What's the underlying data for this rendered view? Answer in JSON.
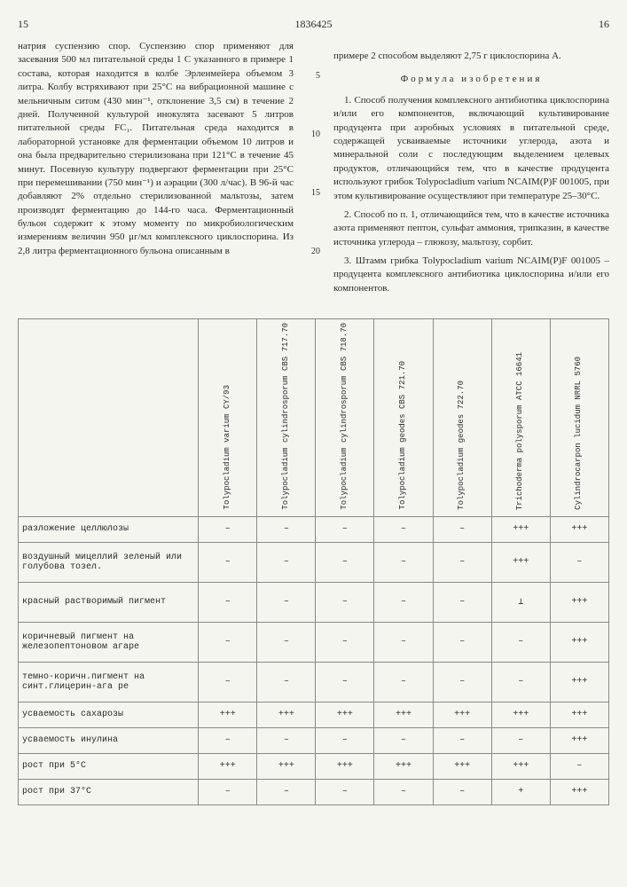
{
  "header": {
    "page_left": "15",
    "doc_number": "1836425",
    "page_right": "16"
  },
  "line_markers": [
    "5",
    "10",
    "15",
    "20"
  ],
  "left_column": {
    "text": "натрия суспензию спор. Суспензию спор применяют для засевания 500 мл питательной среды 1 С указанного в примере 1 состава, которая находится в колбе Эрленмейера объемом 3 литра. Колбу встряхивают при 25°С на вибрационной машине с мельничным ситом (430 мин⁻¹, отклонение 3,5 см) в течение 2 дней. Полученной культурой инокулята засевают 5 литров питательной среды FC₁. Питательная среда находится в лабораторной установке для ферментации объемом 10 литров и она была предварительно стерилизована при 121°С в течение 45 минут. Посевную культуру подвергают ферментации при 25°С при перемешивании (750 мин⁻¹) и аэрации (300 л/час). В 96-й час добавляют 2% отдельно стерилизованной мальтозы, затем производят ферментацию до 144-го часа. Ферментационный бульон содержит к этому моменту по микробиологическим измерениям величин 950 μг/мл комплексного циклоспорина. Из 2,8 литра ферментационного бульона описанным в"
  },
  "right_column": {
    "intro": "примере 2 способом выделяют 2,75 г циклоспорина А.",
    "formula_title": "Формула изобретения",
    "claims": [
      "1. Способ получения комплексного антибиотика циклоспорина и/или его компонентов, включающий культивирование продуцента при аэробных условиях в питательной среде, содержащей усваиваемые источники углерода, азота и минеральной соли с последующим выделением целевых продуктов, отличающийся тем, что в качестве продуцента используют грибок Tolypocladium varium NCAIM(P)F 001005, при этом культивирование осуществляют при температуре 25–30°С.",
      "2. Способ по п. 1, отличающийся тем, что в качестве источника азота применяют пептон, сульфат аммония, трипказин, в качестве источника углерода – глюкозу, мальтозу, сорбит.",
      "3. Штамм грибка Tolypocladium varium NCAIM(P)F 001005 – продуцента комплексного антибиотика циклоспорина и/или его компонентов."
    ]
  },
  "table": {
    "columns": [
      "Tolypocladium varium CY/93",
      "Tolypocladium cylindrosporum CBS 717.70",
      "Tolypocladium cylindrosporum CBS 718.70",
      "Tolypocladium geodes CBS 721.70",
      "Tolypocladium geodes 722.70",
      "Trichoderma polysporum ATCC 16641",
      "Cylindrocarpon lucidum NRRL 5760"
    ],
    "rows": [
      {
        "label": "разложение целлюлозы",
        "cells": [
          "–",
          "–",
          "–",
          "–",
          "–",
          "+++",
          "+++"
        ]
      },
      {
        "label": "воздушный мицеллий зеленый или голубова тозел.",
        "cells": [
          "–",
          "–",
          "–",
          "–",
          "–",
          "+++",
          "–"
        ],
        "tall": true
      },
      {
        "label": "красный растворимый пигмент",
        "cells": [
          "–",
          "–",
          "–",
          "–",
          "–",
          "⊥",
          "+++"
        ],
        "tall": true
      },
      {
        "label": "коричневый пигмент на железопептоновом агаре",
        "cells": [
          "–",
          "–",
          "–",
          "–",
          "–",
          "–",
          "+++"
        ],
        "tall": true
      },
      {
        "label": "темно-коричн.пигмент на синт.глицерин-ага ре",
        "cells": [
          "–",
          "–",
          "–",
          "–",
          "–",
          "–",
          "+++"
        ],
        "tall": true
      },
      {
        "label": "усваемость сахарозы",
        "cells": [
          "+++",
          "+++",
          "+++",
          "+++",
          "+++",
          "+++",
          "+++"
        ]
      },
      {
        "label": "усваемость инулина",
        "cells": [
          "–",
          "–",
          "–",
          "–",
          "–",
          "–",
          "+++"
        ]
      },
      {
        "label": "рост при 5°С",
        "cells": [
          "+++",
          "+++",
          "+++",
          "+++",
          "+++",
          "+++",
          "–"
        ]
      },
      {
        "label": "рост при 37°С",
        "cells": [
          "–",
          "–",
          "–",
          "–",
          "–",
          "+",
          "+++"
        ]
      }
    ]
  }
}
